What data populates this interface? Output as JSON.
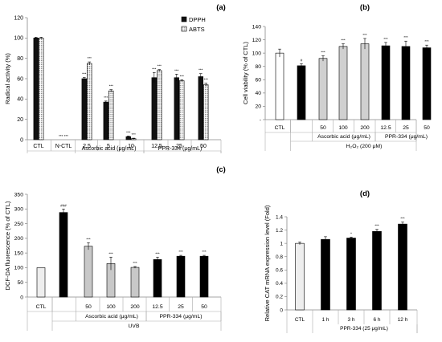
{
  "chart_data": [
    {
      "panel": "(a)",
      "type": "bar",
      "ylabel": "Radical activity (%)",
      "ylim": [
        0,
        120
      ],
      "yticks": [
        0,
        20,
        40,
        60,
        80,
        100,
        120
      ],
      "categories": [
        "CTL",
        "N-CTL",
        "2.5",
        "5",
        "10",
        "12.5",
        "25",
        "50"
      ],
      "groups": [
        {
          "label": "Ascorbic acid (μg/mL)",
          "from": 2,
          "to": 4
        },
        {
          "label": "PPR-334 (μg/mL)",
          "from": 5,
          "to": 7
        }
      ],
      "series": [
        {
          "name": "DPPH",
          "fill": "#111111",
          "values": [
            100,
            0,
            60,
            37,
            3,
            61,
            61,
            62
          ],
          "errors": [
            0.8,
            0,
            1.2,
            1.0,
            0.6,
            5.0,
            3.5,
            3.0
          ],
          "sig": [
            "",
            "***",
            "***",
            "***",
            "***",
            "***",
            "***",
            "***"
          ]
        },
        {
          "name": "ABTS",
          "fill": "pattern",
          "values": [
            100,
            0,
            75,
            48,
            1,
            68,
            58,
            54
          ],
          "errors": [
            0.8,
            0,
            1.5,
            1.2,
            0.5,
            1.0,
            1.0,
            1.5
          ],
          "sig": [
            "",
            "***",
            "***",
            "***",
            "***",
            "***",
            "***",
            "***"
          ]
        }
      ],
      "legend_position": "top-right"
    },
    {
      "panel": "(b)",
      "type": "bar",
      "ylabel": "Cell viability (% of CTL)",
      "ylim": [
        0,
        140
      ],
      "yticks": [
        0,
        20,
        40,
        60,
        80,
        100,
        120,
        140
      ],
      "ytick_labels": [
        "-",
        "20",
        "40",
        "60",
        "80",
        "100",
        "120",
        "140"
      ],
      "categories": [
        "CTL",
        "",
        "50",
        "100",
        "200",
        "12.5",
        "25",
        "50"
      ],
      "values": [
        100,
        81,
        92,
        110,
        114,
        111,
        110,
        108
      ],
      "errors": [
        6,
        3,
        4,
        4,
        8,
        5,
        8,
        4
      ],
      "colors": [
        "#ffffff",
        "#000000",
        "#d0d0d0",
        "#d0d0d0",
        "#d0d0d0",
        "#000000",
        "#000000",
        "#000000"
      ],
      "sig": [
        "",
        "#",
        "***",
        "***",
        "***",
        "***",
        "***",
        "***"
      ],
      "groups": [
        {
          "label": "Ascorbic acid (μg/mL)",
          "from": 2,
          "to": 4
        },
        {
          "label": "PPR-334 (μg/mL)",
          "from": 5,
          "to": 7
        }
      ],
      "condition_label": "H₂O₂ (200 μM)",
      "condition_from": 1,
      "condition_to": 7
    },
    {
      "panel": "(c)",
      "type": "bar",
      "ylabel": "DCF-DA fluorescence (% of CTL)",
      "ylim": [
        0,
        350
      ],
      "yticks": [
        0,
        50,
        100,
        150,
        200,
        250,
        300,
        350
      ],
      "categories": [
        "CTL",
        "",
        "50",
        "100",
        "200",
        "12.5",
        "25",
        "50"
      ],
      "values": [
        100,
        288,
        173,
        114,
        101,
        128,
        139,
        139
      ],
      "errors": [
        0,
        12,
        12,
        22,
        3,
        8,
        3,
        3
      ],
      "colors": [
        "#eeeeee",
        "#000000",
        "#c8c8c8",
        "#c8c8c8",
        "#c8c8c8",
        "#000000",
        "#000000",
        "#000000"
      ],
      "sig": [
        "",
        "###",
        "***",
        "***",
        "***",
        "***",
        "***",
        "***"
      ],
      "groups": [
        {
          "label": "Ascorbic acid (μg/mL)",
          "from": 2,
          "to": 4
        },
        {
          "label": "PPR-334 (μg/mL)",
          "from": 5,
          "to": 7
        }
      ],
      "condition_label": "UVB",
      "condition_from": 1,
      "condition_to": 7
    },
    {
      "panel": "(d)",
      "type": "bar",
      "ylabel": "Relative CAT mRNA expression level (Fold)",
      "ylim": [
        0,
        1.4
      ],
      "yticks": [
        0,
        0.2,
        0.4,
        0.6,
        0.8,
        1.0,
        1.2,
        1.4
      ],
      "ytick_labels": [
        "0",
        "0.2",
        "0.4",
        "0.6",
        "0.8",
        "1",
        "1.2",
        "1.4"
      ],
      "categories": [
        "CTL",
        "1 h",
        "3 h",
        "6 h",
        "12 h"
      ],
      "values": [
        1.0,
        1.06,
        1.08,
        1.18,
        1.29
      ],
      "errors": [
        0.02,
        0.04,
        0.015,
        0.03,
        0.03
      ],
      "colors": [
        "#eeeeee",
        "#000000",
        "#000000",
        "#000000",
        "#000000"
      ],
      "sig": [
        "",
        "",
        "*",
        "***",
        "***"
      ],
      "groups": [
        {
          "label": "PPR-334 (25 μg/mL)",
          "from": 1,
          "to": 4
        }
      ]
    }
  ]
}
